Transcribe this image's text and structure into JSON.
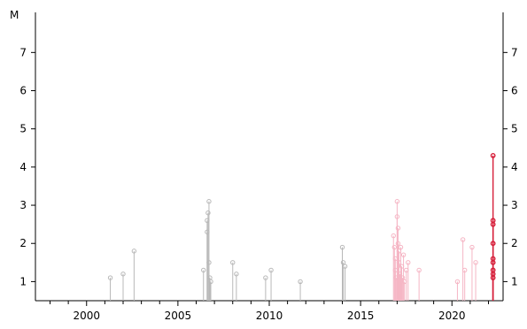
{
  "chart_data": {
    "type": "stem",
    "ylabel": "M",
    "xlim": [
      1997.2,
      2022.8
    ],
    "ylim": [
      0.5,
      8.05
    ],
    "x_ticks": [
      2000,
      2005,
      2010,
      2015,
      2020
    ],
    "y_ticks": [
      1,
      2,
      3,
      4,
      5,
      6,
      7
    ],
    "y_tick_labels_right": [
      "1",
      "2",
      "3",
      "4",
      "5",
      "6",
      "7"
    ],
    "colors": {
      "old": "#b8b8b8",
      "recent": "#f5b5c4",
      "latest": "#d61f3a",
      "axis": "#000000"
    },
    "series": [
      {
        "category": "old",
        "points": [
          {
            "x": 2001.3,
            "y": 1.1
          },
          {
            "x": 2002.0,
            "y": 1.2
          },
          {
            "x": 2002.6,
            "y": 1.8
          },
          {
            "x": 2006.4,
            "y": 1.3
          },
          {
            "x": 2006.6,
            "y": 2.3
          },
          {
            "x": 2006.6,
            "y": 2.6
          },
          {
            "x": 2006.65,
            "y": 2.8
          },
          {
            "x": 2006.7,
            "y": 3.1
          },
          {
            "x": 2006.7,
            "y": 1.5
          },
          {
            "x": 2006.75,
            "y": 1.1
          },
          {
            "x": 2006.8,
            "y": 1.0
          },
          {
            "x": 2008.0,
            "y": 1.5
          },
          {
            "x": 2008.2,
            "y": 1.2
          },
          {
            "x": 2009.8,
            "y": 1.1
          },
          {
            "x": 2010.1,
            "y": 1.3
          },
          {
            "x": 2011.7,
            "y": 1.0
          },
          {
            "x": 2014.0,
            "y": 1.9
          },
          {
            "x": 2014.05,
            "y": 1.5
          },
          {
            "x": 2014.15,
            "y": 1.4
          }
        ]
      },
      {
        "category": "recent",
        "points": [
          {
            "x": 2016.8,
            "y": 2.2
          },
          {
            "x": 2016.85,
            "y": 1.9
          },
          {
            "x": 2016.9,
            "y": 1.6
          },
          {
            "x": 2016.9,
            "y": 1.3
          },
          {
            "x": 2016.95,
            "y": 1.1
          },
          {
            "x": 2017.0,
            "y": 3.1
          },
          {
            "x": 2017.0,
            "y": 2.7
          },
          {
            "x": 2017.05,
            "y": 2.4
          },
          {
            "x": 2017.05,
            "y": 2.0
          },
          {
            "x": 2017.1,
            "y": 1.8
          },
          {
            "x": 2017.1,
            "y": 1.5
          },
          {
            "x": 2017.15,
            "y": 1.2
          },
          {
            "x": 2017.2,
            "y": 1.9
          },
          {
            "x": 2017.25,
            "y": 1.4
          },
          {
            "x": 2017.3,
            "y": 1.1
          },
          {
            "x": 2017.35,
            "y": 1.7
          },
          {
            "x": 2017.4,
            "y": 1.0
          },
          {
            "x": 2017.5,
            "y": 1.3
          },
          {
            "x": 2017.6,
            "y": 1.5
          },
          {
            "x": 2018.2,
            "y": 1.3
          },
          {
            "x": 2020.3,
            "y": 1.0
          },
          {
            "x": 2020.6,
            "y": 2.1
          },
          {
            "x": 2020.7,
            "y": 1.3
          },
          {
            "x": 2021.1,
            "y": 1.9
          },
          {
            "x": 2021.3,
            "y": 1.5
          }
        ]
      },
      {
        "category": "latest",
        "points": [
          {
            "x": 2022.25,
            "y": 4.3
          },
          {
            "x": 2022.25,
            "y": 2.6
          },
          {
            "x": 2022.25,
            "y": 2.5
          },
          {
            "x": 2022.25,
            "y": 2.0
          },
          {
            "x": 2022.25,
            "y": 1.6
          },
          {
            "x": 2022.25,
            "y": 1.5
          },
          {
            "x": 2022.25,
            "y": 1.3
          },
          {
            "x": 2022.25,
            "y": 1.2
          },
          {
            "x": 2022.25,
            "y": 1.1
          }
        ]
      }
    ]
  }
}
